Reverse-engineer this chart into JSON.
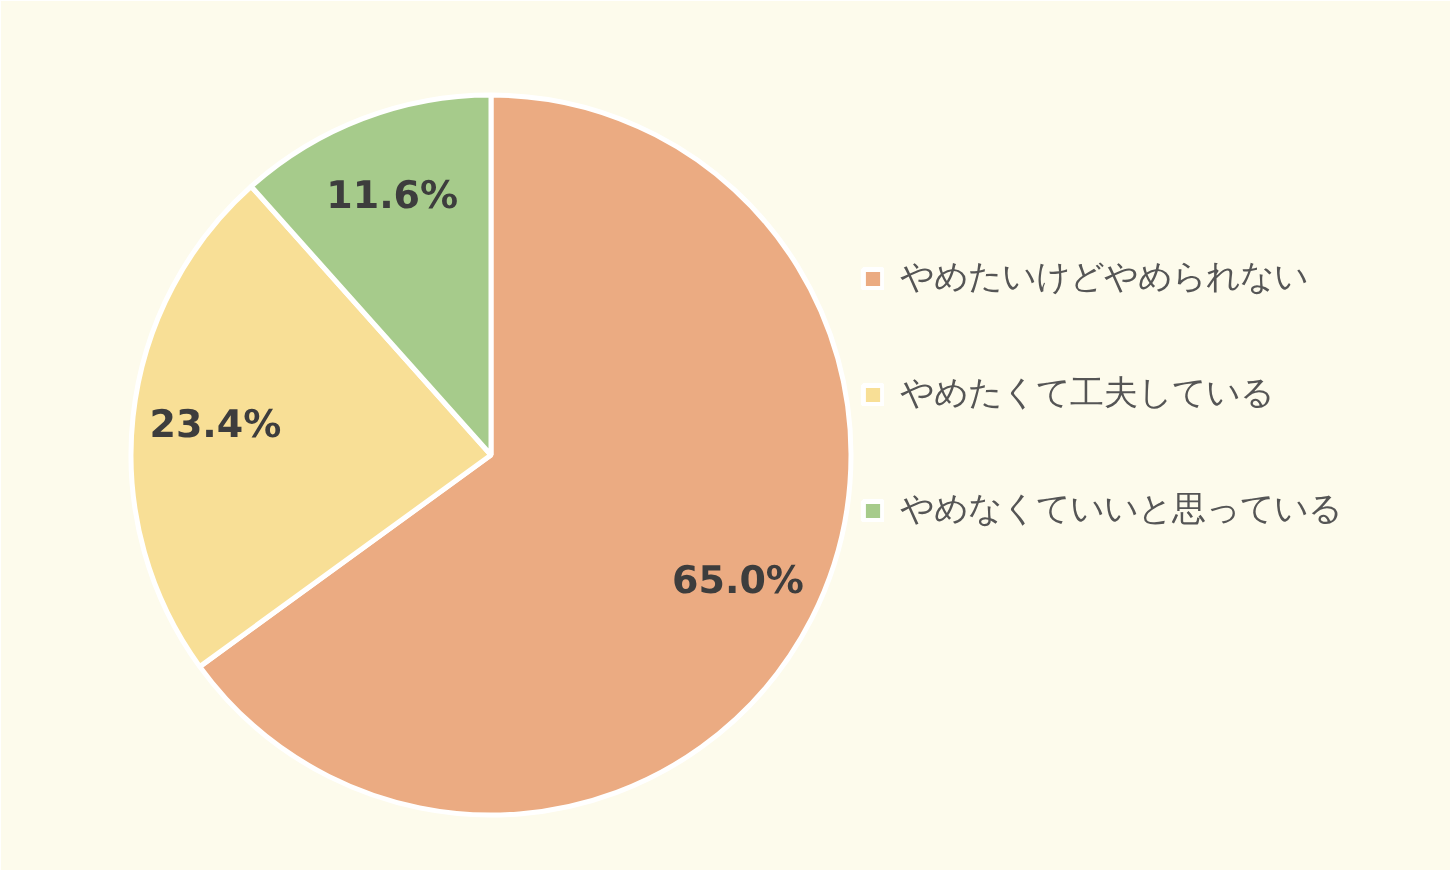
{
  "chart_data": {
    "type": "pie",
    "categories": [
      "やめたいけどやめられない",
      "やめたくて工夫している",
      "やめなくていいと思っている"
    ],
    "values": [
      65.0,
      23.4,
      11.6
    ],
    "colors": [
      "#ebab82",
      "#f8df96",
      "#a6cb8b"
    ],
    "value_labels": [
      "65.0%",
      "23.4%",
      "11.6%"
    ],
    "legend": "right"
  }
}
